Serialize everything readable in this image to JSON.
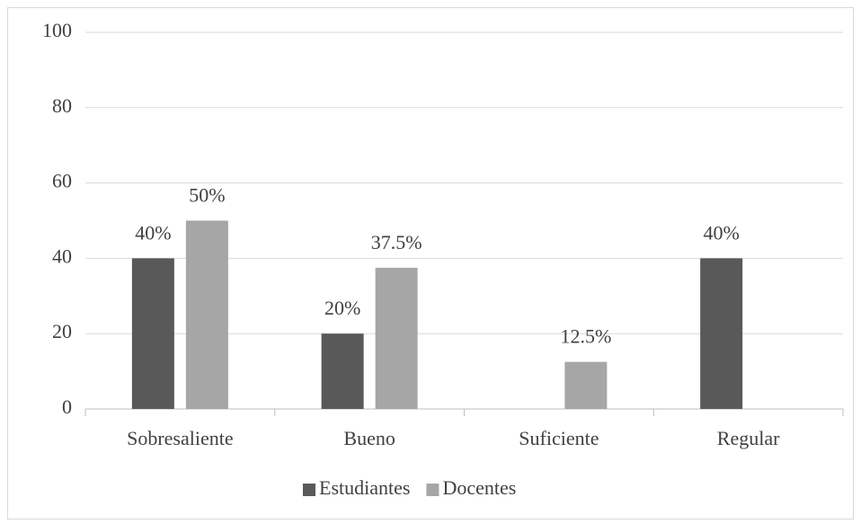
{
  "chart_data": {
    "type": "bar",
    "categories": [
      "Sobresaliente",
      "Bueno",
      "Suficiente",
      "Regular"
    ],
    "series": [
      {
        "name": "Estudiantes",
        "color": "#595959",
        "values": [
          40,
          20,
          null,
          40
        ],
        "value_labels": [
          "40%",
          "20%",
          null,
          "40%"
        ]
      },
      {
        "name": "Docentes",
        "color": "#a6a6a6",
        "values": [
          50,
          37.5,
          12.5,
          null
        ],
        "value_labels": [
          "50%",
          "37.5%",
          "12.5%",
          null
        ]
      }
    ],
    "ylim": [
      0,
      100
    ],
    "yticks": [
      0,
      20,
      40,
      60,
      80,
      100
    ],
    "grid": true,
    "legend": "bottom"
  }
}
